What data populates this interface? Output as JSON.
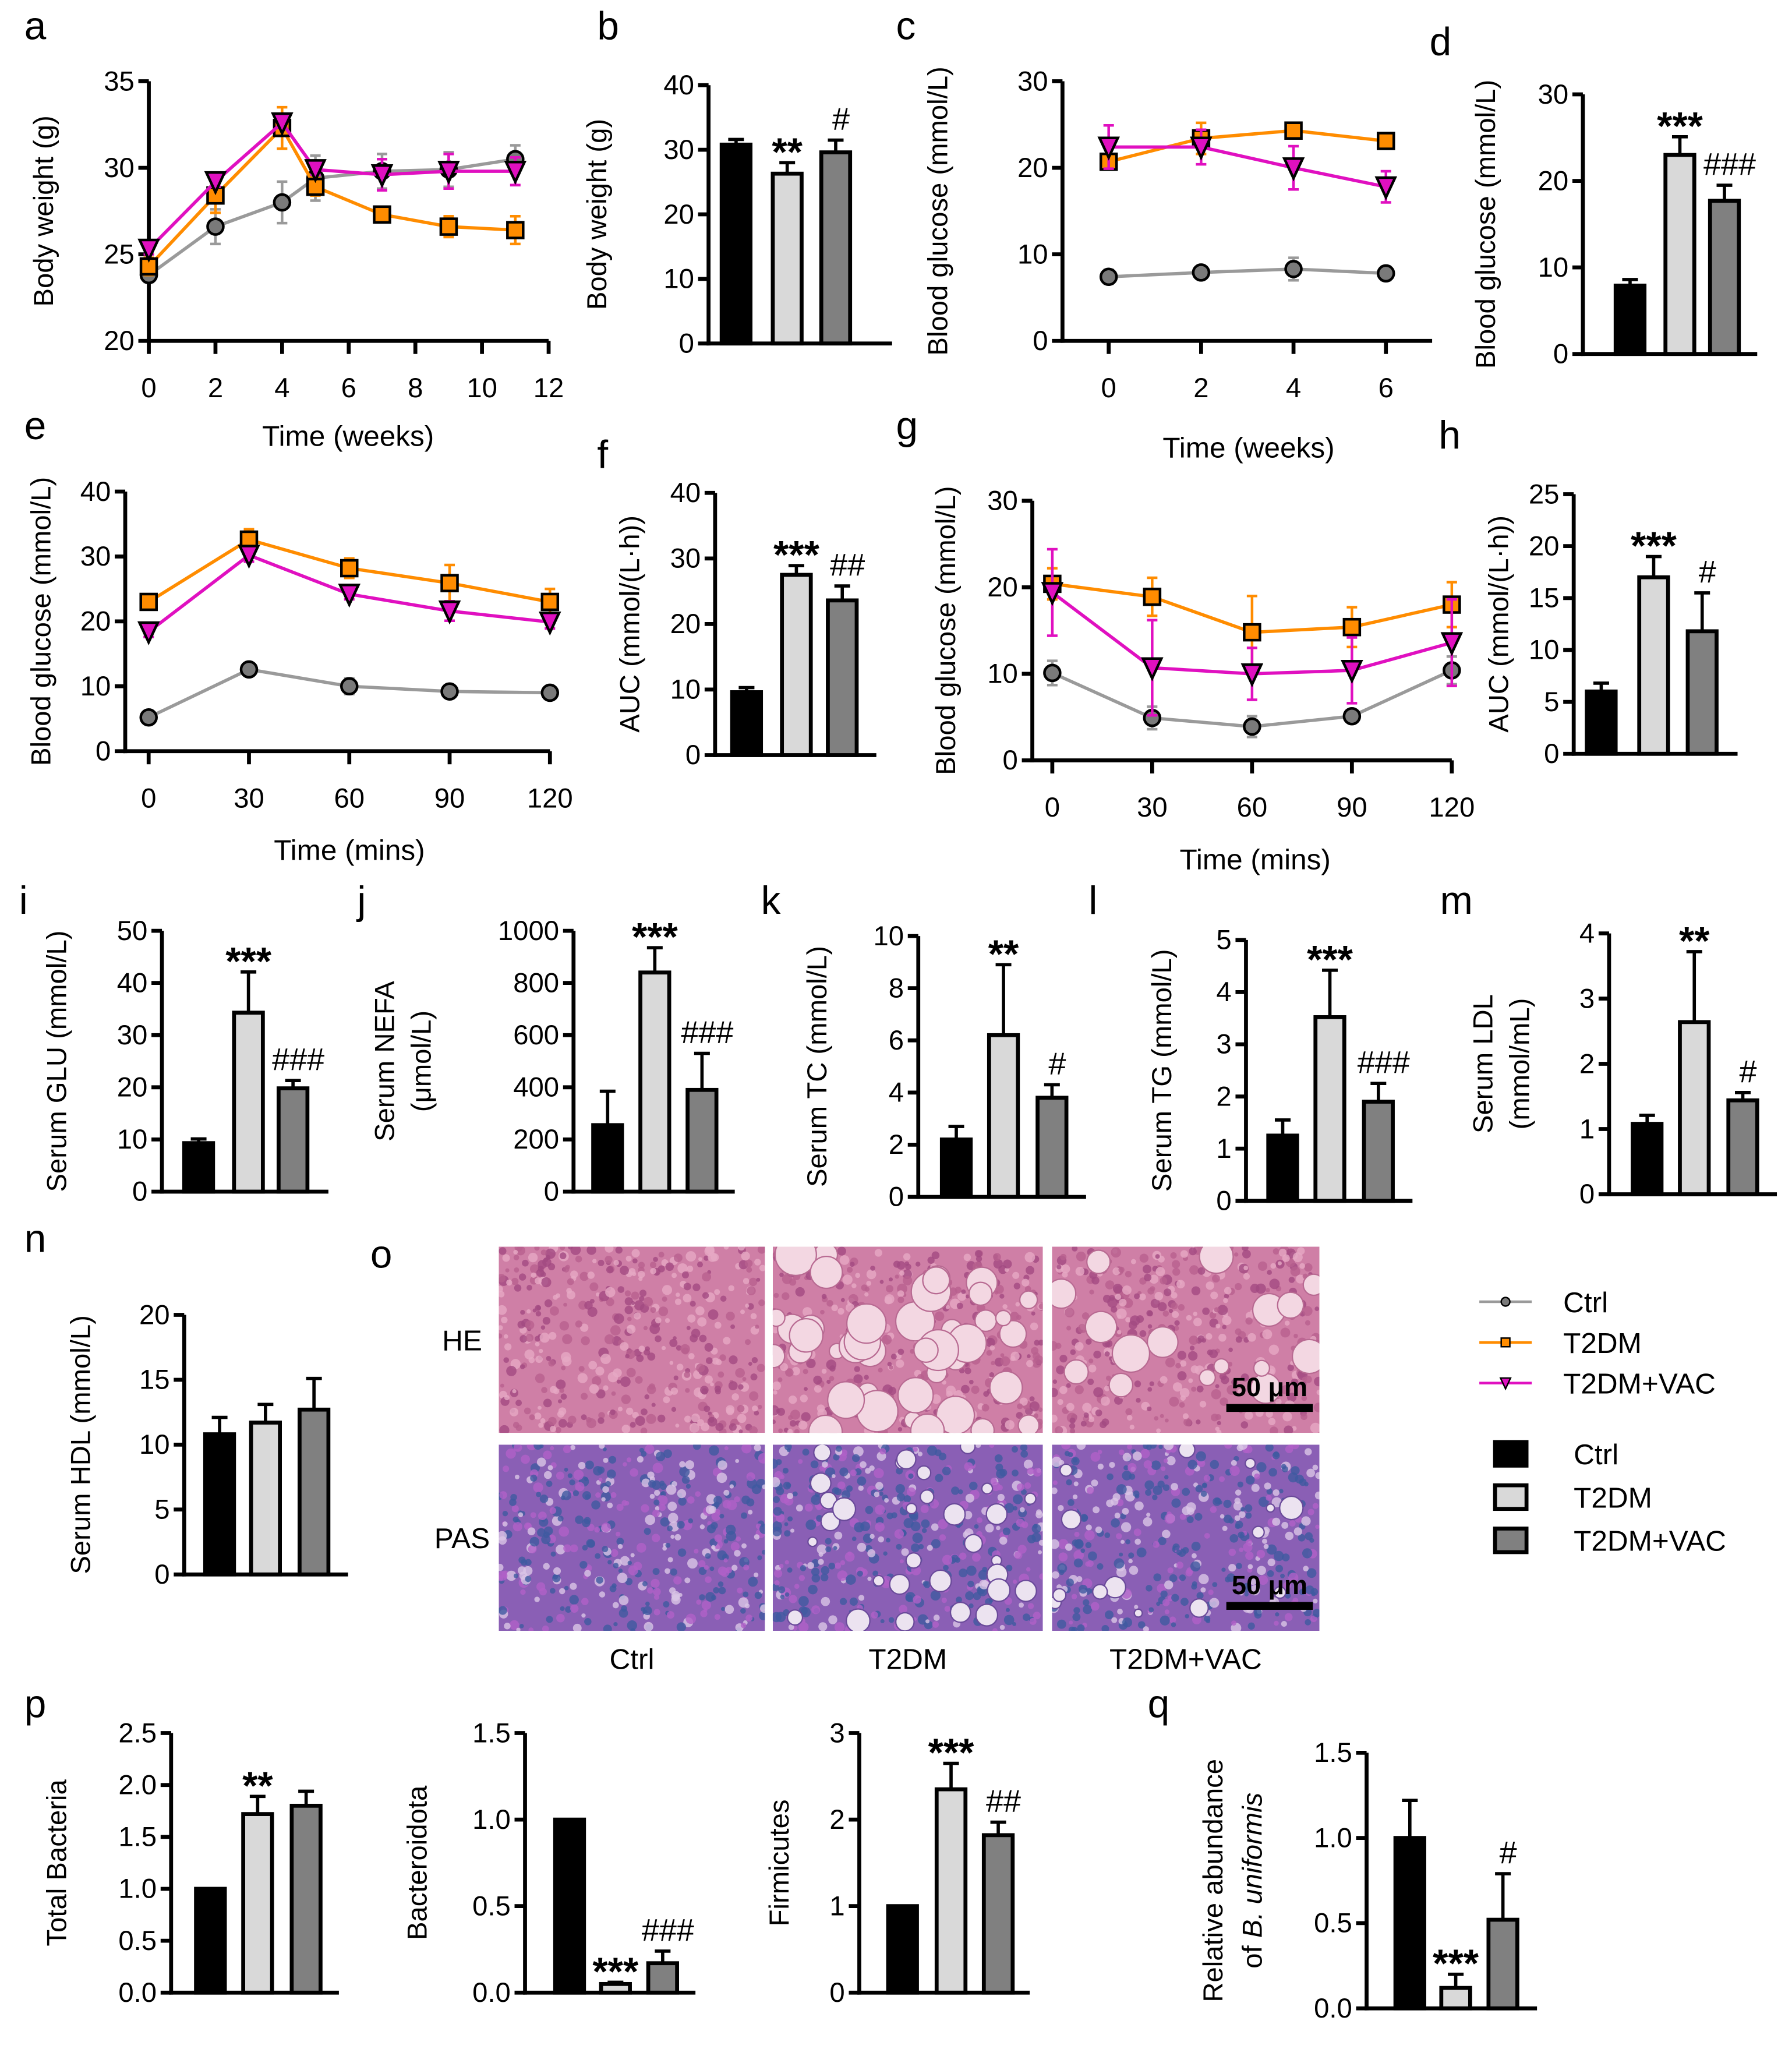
{
  "colors": {
    "ctrl_line": "#9a9a9a",
    "ctrl_marker": "#7a7a7a",
    "t2dm": "#ff8c00",
    "vac": "#e010c0",
    "bar_ctrl": "#000000",
    "bar_t2dm": "#d9d9d9",
    "bar_vac": "#808080"
  },
  "groups": [
    "Ctrl",
    "T2DM",
    "T2DM+VAC"
  ],
  "legend": {
    "line_items": [
      "Ctrl",
      "T2DM",
      "T2DM+VAC"
    ],
    "bar_items": [
      "Ctrl",
      "T2DM",
      "T2DM+VAC"
    ]
  },
  "histology": {
    "panel": "o",
    "rows": [
      "HE",
      "PAS"
    ],
    "columns": [
      "Ctrl",
      "T2DM",
      "T2DM+VAC"
    ],
    "scale_bar": "50 μm"
  },
  "chart_data": [
    {
      "id": "a",
      "panel": "a",
      "type": "line",
      "ylabel": "Body weight (g)",
      "xlabel": "Time (weeks)",
      "x": [
        0,
        2,
        4,
        5,
        7,
        9,
        11
      ],
      "xlim": [
        0,
        12
      ],
      "xticks": [
        "0",
        "2",
        "4",
        "6",
        "8",
        "10",
        "12"
      ],
      "ylim": [
        20,
        35
      ],
      "yticks": [
        "20",
        "25",
        "30",
        "35"
      ],
      "series": [
        {
          "name": "Ctrl",
          "values": [
            23.8,
            26.6,
            28.0,
            29.4,
            29.8,
            29.9,
            30.5
          ],
          "errors": [
            0.4,
            1.0,
            1.2,
            1.3,
            1.0,
            1.0,
            0.8
          ]
        },
        {
          "name": "T2DM",
          "values": [
            24.3,
            28.4,
            32.3,
            28.9,
            27.3,
            26.6,
            26.4
          ],
          "errors": [
            0.5,
            1.0,
            1.2,
            0.5,
            0.4,
            0.6,
            0.8
          ]
        },
        {
          "name": "T2DM+VAC",
          "values": [
            25.3,
            29.2,
            32.6,
            29.9,
            29.6,
            29.8,
            29.8
          ],
          "errors": [
            0.3,
            0.3,
            0.3,
            0.3,
            0.9,
            1.0,
            0.8
          ]
        }
      ]
    },
    {
      "id": "b",
      "panel": "b",
      "type": "bar",
      "ylabel": "Body weight (g)",
      "ylim": [
        0,
        40
      ],
      "yticks": [
        "0",
        "10",
        "20",
        "30",
        "40"
      ],
      "values": [
        30.8,
        26.3,
        29.6
      ],
      "errors": [
        0.8,
        1.7,
        1.9
      ],
      "annotations": [
        "",
        "**",
        "#"
      ]
    },
    {
      "id": "c",
      "panel": "c",
      "type": "line",
      "ylabel": "Blood glucose (mmol/L)",
      "xlabel": "Time (weeks)",
      "x": [
        0,
        2,
        4,
        6
      ],
      "xlim": [
        -1,
        7
      ],
      "xticks": [
        "0",
        "2",
        "4",
        "6"
      ],
      "ylim": [
        0,
        30
      ],
      "yticks": [
        "0",
        "10",
        "20",
        "30"
      ],
      "series": [
        {
          "name": "Ctrl",
          "values": [
            7.4,
            7.9,
            8.3,
            7.8
          ],
          "errors": [
            0.8,
            0.5,
            1.3,
            0.8
          ]
        },
        {
          "name": "T2DM",
          "values": [
            20.7,
            23.4,
            24.3,
            23.1
          ],
          "errors": [
            0.7,
            1.8,
            0.4,
            0.8
          ]
        },
        {
          "name": "T2DM+VAC",
          "values": [
            22.4,
            22.4,
            20.0,
            17.8
          ],
          "errors": [
            2.5,
            2.0,
            2.5,
            1.8
          ]
        }
      ]
    },
    {
      "id": "d",
      "panel": "d",
      "type": "bar",
      "ylabel": "Blood glucose (mmol/L)",
      "ylim": [
        0,
        30
      ],
      "yticks": [
        "0",
        "10",
        "20",
        "30"
      ],
      "values": [
        7.9,
        23.0,
        17.7
      ],
      "errors": [
        0.7,
        2.1,
        1.8
      ],
      "annotations": [
        "",
        "***",
        "###"
      ]
    },
    {
      "id": "e",
      "panel": "e",
      "type": "line",
      "ylabel": "Blood glucose (mmol/L)",
      "xlabel": "Time (mins)",
      "x": [
        0,
        30,
        60,
        90,
        120
      ],
      "xlim": [
        -7,
        120
      ],
      "xticks": [
        "0",
        "30",
        "60",
        "90",
        "120"
      ],
      "ylim": [
        0,
        40
      ],
      "yticks": [
        "0",
        "10",
        "20",
        "30",
        "40"
      ],
      "series": [
        {
          "name": "Ctrl",
          "values": [
            5.2,
            12.6,
            10.0,
            9.2,
            9.0
          ],
          "errors": [
            0.5,
            0.5,
            1.2,
            0.5,
            0.5
          ]
        },
        {
          "name": "T2DM",
          "values": [
            23.0,
            32.6,
            28.2,
            25.9,
            23.0
          ],
          "errors": [
            0.8,
            1.6,
            1.5,
            2.8,
            2.0
          ]
        },
        {
          "name": "T2DM+VAC",
          "values": [
            18.4,
            30.2,
            24.2,
            21.6,
            19.9
          ],
          "errors": [
            0.8,
            1.0,
            0.8,
            1.5,
            1.0
          ]
        }
      ]
    },
    {
      "id": "f",
      "panel": "f",
      "type": "bar",
      "ylabel": "AUC (mmol/(L·h))",
      "ylim": [
        0,
        40
      ],
      "yticks": [
        "0",
        "10",
        "20",
        "30",
        "40"
      ],
      "values": [
        9.6,
        27.5,
        23.6
      ],
      "errors": [
        0.7,
        1.4,
        2.2
      ],
      "annotations": [
        "",
        "***",
        "##"
      ]
    },
    {
      "id": "g",
      "panel": "g",
      "type": "line",
      "ylabel": "Blood glucose (mmol/L)",
      "xlabel": "Time (mins)",
      "x": [
        0,
        30,
        60,
        90,
        120
      ],
      "xlim": [
        -6,
        120
      ],
      "xticks": [
        "0",
        "30",
        "60",
        "90",
        "120"
      ],
      "ylim": [
        0,
        30
      ],
      "yticks": [
        "0",
        "10",
        "20",
        "30"
      ],
      "series": [
        {
          "name": "Ctrl",
          "values": [
            10.1,
            4.9,
            3.9,
            5.1,
            10.4
          ],
          "errors": [
            1.4,
            1.3,
            1.2,
            0.3,
            1.6
          ]
        },
        {
          "name": "T2DM",
          "values": [
            20.4,
            18.9,
            14.8,
            15.4,
            18.0
          ],
          "errors": [
            1.8,
            2.2,
            4.2,
            2.3,
            2.6
          ]
        },
        {
          "name": "T2DM+VAC",
          "values": [
            19.4,
            10.7,
            10.0,
            10.4,
            13.6
          ],
          "errors": [
            5.0,
            5.5,
            3.0,
            3.8,
            5.0
          ]
        }
      ]
    },
    {
      "id": "h",
      "panel": "h",
      "type": "bar",
      "ylabel": "AUC (mmol/(L·h))",
      "ylim": [
        0,
        25
      ],
      "yticks": [
        "0",
        "5",
        "10",
        "15",
        "20",
        "25"
      ],
      "values": [
        6.0,
        17.0,
        11.8
      ],
      "errors": [
        0.8,
        2.0,
        3.7
      ],
      "annotations": [
        "",
        "***",
        "#"
      ]
    },
    {
      "id": "i",
      "panel": "i",
      "type": "bar",
      "ylabel": "Serum GLU (mmol/L)",
      "ylim": [
        0,
        50
      ],
      "yticks": [
        "0",
        "10",
        "20",
        "30",
        "40",
        "50"
      ],
      "values": [
        9.3,
        34.3,
        19.8
      ],
      "errors": [
        0.8,
        7.8,
        1.5
      ],
      "annotations": [
        "",
        "***",
        "###"
      ]
    },
    {
      "id": "j",
      "panel": "j",
      "type": "bar",
      "ylabel": "Serum NEFA",
      "ylabel2": "(μmol/L)",
      "ylim": [
        0,
        1000
      ],
      "yticks": [
        "0",
        "200",
        "400",
        "600",
        "800",
        "1000"
      ],
      "values": [
        255,
        840,
        390
      ],
      "errors": [
        130,
        95,
        140
      ],
      "annotations": [
        "",
        "***",
        "###"
      ]
    },
    {
      "id": "k",
      "panel": "k",
      "type": "bar",
      "ylabel": "Serum TC (mmol/L)",
      "ylim": [
        0,
        10
      ],
      "yticks": [
        "0",
        "2",
        "4",
        "6",
        "8",
        "10"
      ],
      "values": [
        2.2,
        6.2,
        3.8
      ],
      "errors": [
        0.5,
        2.7,
        0.5
      ],
      "annotations": [
        "",
        "**",
        "#"
      ]
    },
    {
      "id": "l",
      "panel": "l",
      "type": "bar",
      "ylabel": "Serum TG (mmol/L)",
      "ylim": [
        0,
        5
      ],
      "yticks": [
        "0",
        "1",
        "2",
        "3",
        "4",
        "5"
      ],
      "values": [
        1.25,
        3.52,
        1.9
      ],
      "errors": [
        0.3,
        0.9,
        0.35
      ],
      "annotations": [
        "",
        "***",
        "###"
      ]
    },
    {
      "id": "m",
      "panel": "m",
      "type": "bar",
      "ylabel": "Serum LDL",
      "ylabel2": "(mmol/mL)",
      "ylim": [
        0,
        4
      ],
      "yticks": [
        "0",
        "1",
        "2",
        "3",
        "4"
      ],
      "values": [
        1.08,
        2.64,
        1.44
      ],
      "errors": [
        0.13,
        1.08,
        0.12
      ],
      "annotations": [
        "",
        "**",
        "#"
      ]
    },
    {
      "id": "n",
      "panel": "n",
      "type": "bar",
      "ylabel": "Serum HDL (mmol/L)",
      "ylim": [
        0,
        20
      ],
      "yticks": [
        "0",
        "5",
        "10",
        "15",
        "20"
      ],
      "values": [
        10.8,
        11.7,
        12.7
      ],
      "errors": [
        1.3,
        1.4,
        2.4
      ],
      "annotations": [
        "",
        "",
        ""
      ]
    },
    {
      "id": "p1",
      "panel": "p",
      "type": "bar",
      "ylabel": "Total Bacteria",
      "ylim": [
        0,
        2.5
      ],
      "yticks": [
        "0.0",
        "0.5",
        "1.0",
        "1.5",
        "2.0",
        "2.5"
      ],
      "values": [
        1.0,
        1.72,
        1.8
      ],
      "errors": [
        0,
        0.17,
        0.14
      ],
      "annotations": [
        "",
        "**",
        ""
      ]
    },
    {
      "id": "p2",
      "panel": "",
      "type": "bar",
      "ylabel": "Bacteroidota",
      "ylim": [
        0,
        1.5
      ],
      "yticks": [
        "0.0",
        "0.5",
        "1.0",
        "1.5"
      ],
      "values": [
        1.0,
        0.05,
        0.17
      ],
      "errors": [
        0,
        0.01,
        0.07
      ],
      "annotations": [
        "",
        "***",
        "###"
      ]
    },
    {
      "id": "p3",
      "panel": "",
      "type": "bar",
      "ylabel": "Firmicutes",
      "ylim": [
        0,
        3
      ],
      "yticks": [
        "0",
        "1",
        "2",
        "3"
      ],
      "values": [
        1.0,
        2.35,
        1.82
      ],
      "errors": [
        0,
        0.3,
        0.15
      ],
      "annotations": [
        "",
        "***",
        "##"
      ]
    },
    {
      "id": "q",
      "panel": "q",
      "type": "bar",
      "ylabel": "Relative abundance",
      "ylabel2_prefix": "of ",
      "ylabel2_italic": "B. uniformis",
      "ylim": [
        0,
        1.5
      ],
      "yticks": [
        "0.0",
        "0.5",
        "1.0",
        "1.5"
      ],
      "values": [
        1.0,
        0.12,
        0.52
      ],
      "errors": [
        0.22,
        0.08,
        0.27
      ],
      "annotations": [
        "",
        "***",
        "#"
      ]
    }
  ]
}
